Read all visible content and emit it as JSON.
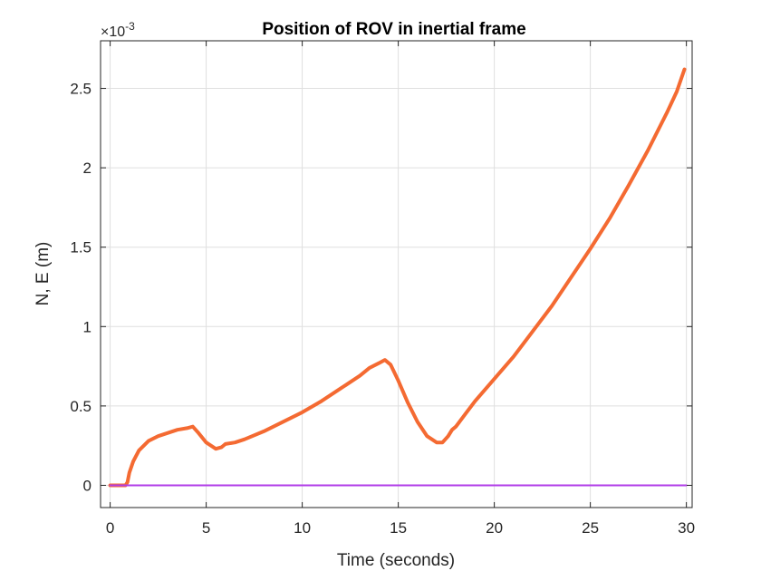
{
  "chart_data": {
    "type": "line",
    "title": "Position of ROV in inertial frame",
    "xlabel": "Time (seconds)",
    "ylabel": "N, E (m)",
    "y_exponent_label": "×10",
    "y_exponent_power": "-3",
    "xlim": [
      -0.5,
      30.3
    ],
    "ylim": [
      -0.14,
      2.8
    ],
    "x_ticks": [
      0,
      5,
      10,
      15,
      20,
      25,
      30
    ],
    "x_tick_labels": [
      "0",
      "5",
      "10",
      "15",
      "20",
      "25",
      "30"
    ],
    "y_ticks": [
      0,
      0.5,
      1,
      1.5,
      2,
      2.5
    ],
    "y_tick_labels": [
      "0",
      "0.5",
      "1",
      "1.5",
      "2",
      "2.5"
    ],
    "grid": true,
    "series": [
      {
        "color": "#f46a32",
        "line_width": 4,
        "x": [
          0,
          0.8,
          0.9,
          1.0,
          1.2,
          1.5,
          2.0,
          2.5,
          3.0,
          3.5,
          4.0,
          4.3,
          4.6,
          5.0,
          5.5,
          5.8,
          6.0,
          6.5,
          7,
          8,
          9,
          10,
          11,
          12,
          13,
          13.5,
          14.0,
          14.3,
          14.6,
          15.0,
          15.5,
          16.0,
          16.5,
          17.0,
          17.3,
          17.6,
          17.8,
          18.0,
          18.5,
          19,
          20,
          21,
          22,
          23,
          24,
          25,
          26,
          27,
          28,
          29,
          29.5,
          29.9
        ],
        "y": [
          0,
          0,
          0.02,
          0.08,
          0.15,
          0.22,
          0.28,
          0.31,
          0.33,
          0.35,
          0.36,
          0.37,
          0.33,
          0.27,
          0.23,
          0.24,
          0.26,
          0.27,
          0.29,
          0.34,
          0.4,
          0.46,
          0.53,
          0.61,
          0.69,
          0.74,
          0.77,
          0.79,
          0.76,
          0.66,
          0.52,
          0.4,
          0.31,
          0.27,
          0.27,
          0.31,
          0.35,
          0.37,
          0.45,
          0.53,
          0.67,
          0.81,
          0.97,
          1.13,
          1.31,
          1.49,
          1.68,
          1.89,
          2.11,
          2.35,
          2.48,
          2.62
        ]
      },
      {
        "color": "#b13de8",
        "line_width": 2,
        "x": [
          0,
          30
        ],
        "y": [
          0,
          0
        ]
      }
    ]
  }
}
